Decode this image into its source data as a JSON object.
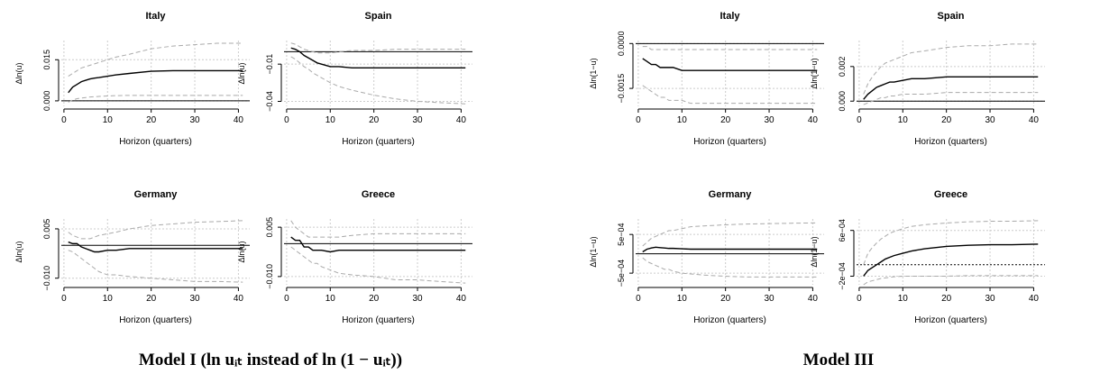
{
  "chart_data": [
    {
      "type": "line",
      "title": "Italy",
      "xlabel": "Horizon (quarters)",
      "ylabel": "Δln(u)",
      "x": [
        1,
        2,
        3,
        4,
        5,
        6,
        7,
        8,
        10,
        12,
        15,
        20,
        25,
        30,
        35,
        41
      ],
      "xlim": [
        -0.6,
        42.6
      ],
      "xticks": [
        0,
        10,
        20,
        30,
        40
      ],
      "ylim": [
        -0.002,
        0.022
      ],
      "yticks": [
        {
          "value": 0,
          "label": "0.000"
        },
        {
          "value": 0.015,
          "label": "0.015"
        }
      ],
      "grid": true,
      "hline": 0,
      "hline_style": "solid",
      "series": [
        {
          "color": "#000000",
          "style": "solid",
          "values": [
            0.003,
            0.005,
            0.006,
            0.007,
            0.0075,
            0.008,
            0.0083,
            0.0085,
            0.009,
            0.0095,
            0.01,
            0.0108,
            0.011,
            0.011,
            0.011,
            0.011
          ]
        },
        {
          "color": "#aaaaaa",
          "style": "dashed",
          "values": [
            0.009,
            0.01,
            0.011,
            0.012,
            0.0125,
            0.013,
            0.0135,
            0.014,
            0.015,
            0.016,
            0.017,
            0.019,
            0.02,
            0.0205,
            0.021,
            0.021
          ]
        },
        {
          "color": "#aaaaaa",
          "style": "dashed",
          "values": [
            -0.0005,
            0.0003,
            0.0008,
            0.001,
            0.0012,
            0.0014,
            0.0015,
            0.0016,
            0.0018,
            0.0019,
            0.002,
            0.002,
            0.002,
            0.002,
            0.002,
            0.002
          ]
        }
      ]
    },
    {
      "type": "line",
      "title": "Spain",
      "xlabel": "Horizon (quarters)",
      "ylabel": "Δln(u)",
      "x": [
        1,
        2,
        3,
        4,
        5,
        6,
        7,
        8,
        10,
        12,
        15,
        20,
        25,
        30,
        35,
        41
      ],
      "xlim": [
        -0.6,
        42.6
      ],
      "xticks": [
        0,
        10,
        20,
        30,
        40
      ],
      "ylim": [
        -0.044,
        0.009
      ],
      "yticks": [
        {
          "value": -0.04,
          "label": "−0.04"
        },
        {
          "value": -0.01,
          "label": "−0.01"
        }
      ],
      "grid": true,
      "hline": 0,
      "hline_style": "solid",
      "series": [
        {
          "color": "#000000",
          "style": "solid",
          "values": [
            0.003,
            0.002,
            0.0,
            -0.003,
            -0.005,
            -0.007,
            -0.009,
            -0.01,
            -0.012,
            -0.012,
            -0.013,
            -0.013,
            -0.013,
            -0.013,
            -0.013,
            -0.013
          ]
        },
        {
          "color": "#aaaaaa",
          "style": "dashed",
          "values": [
            0.007,
            0.006,
            0.004,
            0.002,
            0.001,
            0.0,
            -0.001,
            -0.001,
            -0.001,
            0.0,
            0.001,
            0.001,
            0.002,
            0.002,
            0.002,
            0.002
          ]
        },
        {
          "color": "#aaaaaa",
          "style": "dashed",
          "values": [
            -0.004,
            -0.006,
            -0.009,
            -0.012,
            -0.014,
            -0.017,
            -0.019,
            -0.021,
            -0.025,
            -0.028,
            -0.031,
            -0.035,
            -0.038,
            -0.04,
            -0.041,
            -0.042
          ]
        }
      ]
    },
    {
      "type": "line",
      "title": "Germany",
      "xlabel": "Horizon (quarters)",
      "ylabel": "Δln(u)",
      "x": [
        1,
        2,
        3,
        4,
        5,
        6,
        7,
        8,
        10,
        12,
        15,
        20,
        25,
        30,
        35,
        41
      ],
      "xlim": [
        -0.6,
        42.6
      ],
      "xticks": [
        0,
        10,
        20,
        30,
        40
      ],
      "ylim": [
        -0.012,
        0.008
      ],
      "yticks": [
        {
          "value": -0.01,
          "label": "−0.010"
        },
        {
          "value": 0.005,
          "label": "0.005"
        }
      ],
      "grid": true,
      "hline": 0,
      "hline_style": "solid",
      "series": [
        {
          "color": "#000000",
          "style": "solid",
          "values": [
            0.001,
            0.0005,
            0.0005,
            -0.0005,
            -0.001,
            -0.0015,
            -0.002,
            -0.002,
            -0.0015,
            -0.0015,
            -0.001,
            -0.001,
            -0.001,
            -0.001,
            -0.001,
            -0.001
          ]
        },
        {
          "color": "#aaaaaa",
          "style": "dashed",
          "values": [
            0.004,
            0.003,
            0.0025,
            0.002,
            0.002,
            0.002,
            0.0025,
            0.003,
            0.0035,
            0.004,
            0.005,
            0.006,
            0.0065,
            0.007,
            0.0072,
            0.0075
          ]
        },
        {
          "color": "#aaaaaa",
          "style": "dashed",
          "values": [
            -0.0015,
            -0.002,
            -0.003,
            -0.004,
            -0.005,
            -0.006,
            -0.007,
            -0.008,
            -0.009,
            -0.009,
            -0.0095,
            -0.01,
            -0.0105,
            -0.011,
            -0.011,
            -0.0112
          ]
        }
      ]
    },
    {
      "type": "line",
      "title": "Greece",
      "xlabel": "Horizon (quarters)",
      "ylabel": "Δln(u)",
      "x": [
        1,
        2,
        3,
        4,
        5,
        6,
        7,
        8,
        10,
        12,
        15,
        20,
        25,
        30,
        35,
        41
      ],
      "xlim": [
        -0.6,
        42.6
      ],
      "xticks": [
        0,
        10,
        20,
        30,
        40
      ],
      "ylim": [
        -0.0125,
        0.0075
      ],
      "yticks": [
        {
          "value": -0.01,
          "label": "−0.010"
        },
        {
          "value": 0.005,
          "label": "0.005"
        }
      ],
      "grid": true,
      "hline": 0,
      "hline_style": "solid",
      "series": [
        {
          "color": "#000000",
          "style": "solid",
          "values": [
            0.002,
            0.001,
            0.001,
            -0.001,
            -0.001,
            -0.002,
            -0.002,
            -0.002,
            -0.0025,
            -0.002,
            -0.002,
            -0.002,
            -0.002,
            -0.002,
            -0.002,
            -0.002
          ]
        },
        {
          "color": "#aaaaaa",
          "style": "dashed",
          "values": [
            0.007,
            0.005,
            0.004,
            0.003,
            0.002,
            0.002,
            0.002,
            0.002,
            0.002,
            0.002,
            0.0025,
            0.003,
            0.003,
            0.003,
            0.003,
            0.003
          ]
        },
        {
          "color": "#aaaaaa",
          "style": "dashed",
          "values": [
            -0.001,
            -0.002,
            -0.003,
            -0.004,
            -0.005,
            -0.006,
            -0.006,
            -0.007,
            -0.008,
            -0.009,
            -0.0095,
            -0.01,
            -0.011,
            -0.011,
            -0.0115,
            -0.012
          ]
        }
      ]
    },
    {
      "type": "line",
      "title": "Italy",
      "xlabel": "Horizon (quarters)",
      "ylabel": "Δln(1−u)",
      "x": [
        1,
        2,
        3,
        4,
        5,
        6,
        7,
        8,
        10,
        12,
        15,
        20,
        25,
        30,
        35,
        41
      ],
      "xlim": [
        -0.6,
        42.6
      ],
      "xticks": [
        0,
        10,
        20,
        30,
        40
      ],
      "ylim": [
        -0.0021,
        0.0001
      ],
      "yticks": [
        {
          "value": -0.0015,
          "label": "−0.0015"
        },
        {
          "value": 0,
          "label": "0.0000"
        }
      ],
      "grid": true,
      "hline": 0,
      "hline_style": "solid",
      "series": [
        {
          "color": "#000000",
          "style": "solid",
          "values": [
            -0.0005,
            -0.0006,
            -0.0007,
            -0.0007,
            -0.0008,
            -0.0008,
            -0.0008,
            -0.0008,
            -0.0009,
            -0.0009,
            -0.0009,
            -0.0009,
            -0.0009,
            -0.0009,
            -0.0009,
            -0.0009
          ]
        },
        {
          "color": "#aaaaaa",
          "style": "dashed",
          "values": [
            -0.0001,
            -0.0001,
            -0.0002,
            -0.0002,
            -0.0002,
            -0.0002,
            -0.0002,
            -0.0002,
            -0.0002,
            -0.0002,
            -0.0002,
            -0.0002,
            -0.0002,
            -0.0002,
            -0.0002,
            -0.0002
          ]
        },
        {
          "color": "#aaaaaa",
          "style": "dashed",
          "values": [
            -0.0014,
            -0.0015,
            -0.0016,
            -0.0017,
            -0.0018,
            -0.0018,
            -0.0019,
            -0.0019,
            -0.0019,
            -0.002,
            -0.002,
            -0.002,
            -0.002,
            -0.002,
            -0.002,
            -0.002
          ]
        }
      ]
    },
    {
      "type": "line",
      "title": "Spain",
      "xlabel": "Horizon (quarters)",
      "ylabel": "Δln(1−u)",
      "x": [
        1,
        2,
        3,
        4,
        5,
        6,
        7,
        8,
        10,
        12,
        15,
        20,
        25,
        30,
        35,
        41
      ],
      "xlim": [
        -0.6,
        42.6
      ],
      "xticks": [
        0,
        10,
        20,
        30,
        40
      ],
      "ylim": [
        -0.0003,
        0.0035
      ],
      "yticks": [
        {
          "value": 0,
          "label": "0.000"
        },
        {
          "value": 0.002,
          "label": "0.002"
        }
      ],
      "grid": true,
      "hline": 0,
      "hline_style": "solid",
      "series": [
        {
          "color": "#000000",
          "style": "solid",
          "values": [
            0.0001,
            0.0004,
            0.0006,
            0.0008,
            0.0009,
            0.001,
            0.0011,
            0.0011,
            0.0012,
            0.0013,
            0.0013,
            0.0014,
            0.0014,
            0.0014,
            0.0014,
            0.0014
          ]
        },
        {
          "color": "#aaaaaa",
          "style": "dashed",
          "values": [
            0.0004,
            0.001,
            0.0014,
            0.0017,
            0.002,
            0.0022,
            0.0023,
            0.0024,
            0.0026,
            0.0028,
            0.0029,
            0.0031,
            0.0032,
            0.0032,
            0.0033,
            0.0033
          ]
        },
        {
          "color": "#aaaaaa",
          "style": "dashed",
          "values": [
            -0.0002,
            -0.0001,
            0.0,
            0.0001,
            0.0002,
            0.0002,
            0.0003,
            0.0003,
            0.0004,
            0.0004,
            0.0004,
            0.0005,
            0.0005,
            0.0005,
            0.0005,
            0.0005
          ]
        }
      ]
    },
    {
      "type": "line",
      "title": "Germany",
      "xlabel": "Horizon (quarters)",
      "ylabel": "Δln(1−u)",
      "x": [
        1,
        2,
        3,
        4,
        5,
        6,
        7,
        8,
        10,
        12,
        15,
        20,
        25,
        30,
        35,
        41
      ],
      "xlim": [
        -0.6,
        42.6
      ],
      "xticks": [
        0,
        10,
        20,
        30,
        40
      ],
      "ylim": [
        -0.0008,
        0.0009
      ],
      "yticks": [
        {
          "value": -0.0005,
          "label": "−5e−04"
        },
        {
          "value": 0.0005,
          "label": "5e−04"
        }
      ],
      "grid": true,
      "hline": 0,
      "hline_style": "solid",
      "series": [
        {
          "color": "#000000",
          "style": "solid",
          "values": [
            5e-05,
            0.00012,
            0.00015,
            0.00017,
            0.00016,
            0.00015,
            0.00014,
            0.00014,
            0.00013,
            0.00012,
            0.00012,
            0.00012,
            0.00012,
            0.00012,
            0.00012,
            0.00012
          ]
        },
        {
          "color": "#aaaaaa",
          "style": "dashed",
          "values": [
            0.0002,
            0.0003,
            0.0004,
            0.00045,
            0.0005,
            0.00055,
            0.0006,
            0.0006,
            0.00065,
            0.0007,
            0.00072,
            0.00075,
            0.00077,
            0.00078,
            0.00079,
            0.0008
          ]
        },
        {
          "color": "#aaaaaa",
          "style": "dashed",
          "values": [
            -0.0001,
            -0.0002,
            -0.00025,
            -0.0003,
            -0.00035,
            -0.0004,
            -0.0004,
            -0.00045,
            -0.0005,
            -0.00052,
            -0.00055,
            -0.00058,
            -0.0006,
            -0.0006,
            -0.0006,
            -0.0006
          ]
        }
      ]
    },
    {
      "type": "line",
      "title": "Greece",
      "xlabel": "Horizon (quarters)",
      "ylabel": "Δln(1−u)",
      "x": [
        1,
        2,
        3,
        4,
        5,
        6,
        7,
        8,
        10,
        12,
        15,
        20,
        25,
        30,
        35,
        41
      ],
      "xlim": [
        -0.6,
        42.6
      ],
      "xticks": [
        0,
        10,
        20,
        30,
        40
      ],
      "ylim": [
        -0.00035,
        0.0008
      ],
      "yticks": [
        {
          "value": -0.0002,
          "label": "−2e−04"
        },
        {
          "value": 0.0006,
          "label": "6e−04"
        }
      ],
      "grid": true,
      "hline": 0,
      "hline_style": "dotted",
      "series": [
        {
          "color": "#000000",
          "style": "solid",
          "values": [
            -0.0002,
            -0.0001,
            -5e-05,
            0.0,
            5e-05,
            0.0001,
            0.00013,
            0.00016,
            0.0002,
            0.00024,
            0.00028,
            0.00032,
            0.00034,
            0.00035,
            0.00035,
            0.00036
          ]
        },
        {
          "color": "#aaaaaa",
          "style": "dashed",
          "values": [
            0.0,
            0.0002,
            0.0003,
            0.00038,
            0.00045,
            0.0005,
            0.00055,
            0.00058,
            0.00063,
            0.00067,
            0.0007,
            0.00073,
            0.00075,
            0.00076,
            0.00076,
            0.00077
          ]
        },
        {
          "color": "#aaaaaa",
          "style": "dashed",
          "values": [
            -0.00035,
            -0.0003,
            -0.00028,
            -0.00026,
            -0.00024,
            -0.00023,
            -0.00022,
            -0.00021,
            -0.0002,
            -0.0002,
            -0.0002,
            -0.0002,
            -0.00019,
            -0.00019,
            -0.00019,
            -0.00019
          ]
        }
      ]
    }
  ],
  "captions": [
    "Model I (ln uᵢₜ instead of ln (1 − uᵢₜ))",
    "Model III"
  ]
}
